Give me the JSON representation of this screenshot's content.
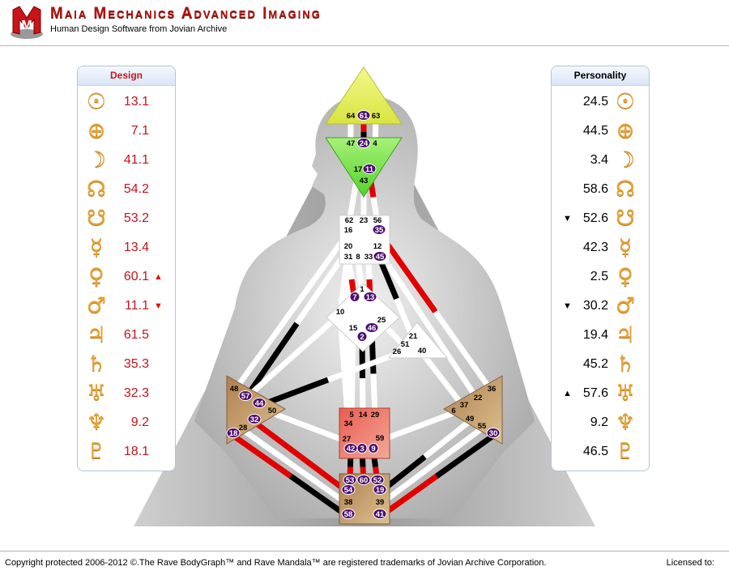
{
  "header": {
    "title": "Maia Mechanics Advanced Imaging",
    "subtitle": "Human Design Software from Jovian Archive",
    "logo_letter": "M"
  },
  "design": {
    "title": "Design",
    "rows": [
      {
        "planet": "sun-icon",
        "glyph": "☉",
        "value": "13.1",
        "arrow": ""
      },
      {
        "planet": "earth-icon",
        "glyph": "⊕",
        "value": "7.1",
        "arrow": ""
      },
      {
        "planet": "moon-icon",
        "glyph": "☽",
        "value": "41.1",
        "arrow": ""
      },
      {
        "planet": "north-node-icon",
        "glyph": "☊",
        "value": "54.2",
        "arrow": ""
      },
      {
        "planet": "south-node-icon",
        "glyph": "☋",
        "value": "53.2",
        "arrow": ""
      },
      {
        "planet": "mercury-icon",
        "glyph": "☿",
        "value": "13.4",
        "arrow": ""
      },
      {
        "planet": "venus-icon",
        "glyph": "♀",
        "value": "60.1",
        "arrow": "▲"
      },
      {
        "planet": "mars-icon",
        "glyph": "♂",
        "value": "11.1",
        "arrow": "▼"
      },
      {
        "planet": "jupiter-icon",
        "glyph": "♃",
        "value": "61.5",
        "arrow": ""
      },
      {
        "planet": "saturn-icon",
        "glyph": "♄",
        "value": "35.3",
        "arrow": ""
      },
      {
        "planet": "uranus-icon",
        "glyph": "♅",
        "value": "32.3",
        "arrow": ""
      },
      {
        "planet": "neptune-icon",
        "glyph": "♆",
        "value": "9.2",
        "arrow": ""
      },
      {
        "planet": "pluto-icon",
        "glyph": "♇",
        "value": "18.1",
        "arrow": ""
      }
    ]
  },
  "personality": {
    "title": "Personality",
    "rows": [
      {
        "planet": "sun-icon",
        "glyph": "☉",
        "value": "24.5",
        "arrow": ""
      },
      {
        "planet": "earth-icon",
        "glyph": "⊕",
        "value": "44.5",
        "arrow": ""
      },
      {
        "planet": "moon-icon",
        "glyph": "☽",
        "value": "3.4",
        "arrow": ""
      },
      {
        "planet": "north-node-icon",
        "glyph": "☊",
        "value": "58.6",
        "arrow": ""
      },
      {
        "planet": "south-node-icon",
        "glyph": "☋",
        "value": "52.6",
        "arrow": "▼"
      },
      {
        "planet": "mercury-icon",
        "glyph": "☿",
        "value": "42.3",
        "arrow": ""
      },
      {
        "planet": "venus-icon",
        "glyph": "♀",
        "value": "2.5",
        "arrow": ""
      },
      {
        "planet": "mars-icon",
        "glyph": "♂",
        "value": "30.2",
        "arrow": "▼"
      },
      {
        "planet": "jupiter-icon",
        "glyph": "♃",
        "value": "19.4",
        "arrow": ""
      },
      {
        "planet": "saturn-icon",
        "glyph": "♄",
        "value": "45.2",
        "arrow": ""
      },
      {
        "planet": "uranus-icon",
        "glyph": "♅",
        "value": "57.6",
        "arrow": "▲"
      },
      {
        "planet": "neptune-icon",
        "glyph": "♆",
        "value": "9.2",
        "arrow": ""
      },
      {
        "planet": "pluto-icon",
        "glyph": "♇",
        "value": "46.5",
        "arrow": ""
      }
    ]
  },
  "colors": {
    "design": "#e00000",
    "personality": "#000000",
    "planet_glyph": "#e6a53a",
    "active_gate": "#4b0f6e",
    "head": "#e8f060",
    "ajna": "#7fe24a",
    "sacral": "#e86a5c",
    "motor_tan": "#c49a62"
  },
  "bodygraph": {
    "gates": {
      "head": [
        [
          "64",
          0
        ],
        [
          "61",
          1
        ],
        [
          "63",
          0
        ]
      ],
      "ajna": [
        [
          "47",
          0
        ],
        [
          "24",
          1
        ],
        [
          "4",
          0
        ],
        [
          "17",
          0
        ],
        [
          "11",
          1
        ],
        [
          "43",
          0
        ]
      ],
      "throat": [
        [
          "62",
          0
        ],
        [
          "23",
          0
        ],
        [
          "56",
          0
        ],
        [
          "16",
          0
        ],
        [
          "35",
          1
        ],
        [
          "20",
          0
        ],
        [
          "12",
          0
        ],
        [
          "31",
          0
        ],
        [
          "8",
          0
        ],
        [
          "33",
          0
        ],
        [
          "45",
          1
        ]
      ],
      "g": [
        [
          "1",
          0
        ],
        [
          "7",
          1
        ],
        [
          "13",
          1
        ],
        [
          "10",
          0
        ],
        [
          "25",
          0
        ],
        [
          "15",
          0
        ],
        [
          "46",
          1
        ],
        [
          "2",
          1
        ]
      ],
      "heart": [
        [
          "21",
          0
        ],
        [
          "51",
          0
        ],
        [
          "26",
          0
        ],
        [
          "40",
          0
        ]
      ],
      "sacral": [
        [
          "5",
          0
        ],
        [
          "14",
          0
        ],
        [
          "29",
          0
        ],
        [
          "34",
          0
        ],
        [
          "27",
          0
        ],
        [
          "59",
          0
        ],
        [
          "42",
          1
        ],
        [
          "3",
          1
        ],
        [
          "9",
          1
        ]
      ],
      "root": [
        [
          "53",
          1
        ],
        [
          "60",
          1
        ],
        [
          "52",
          1
        ],
        [
          "54",
          1
        ],
        [
          "19",
          1
        ],
        [
          "38",
          0
        ],
        [
          "39",
          0
        ],
        [
          "58",
          1
        ],
        [
          "41",
          1
        ]
      ],
      "spleen": [
        [
          "48",
          0
        ],
        [
          "57",
          1
        ],
        [
          "44",
          1
        ],
        [
          "50",
          0
        ],
        [
          "32",
          1
        ],
        [
          "28",
          0
        ],
        [
          "18",
          1
        ]
      ],
      "solar": [
        [
          "36",
          0
        ],
        [
          "22",
          0
        ],
        [
          "37",
          0
        ],
        [
          "6",
          0
        ],
        [
          "49",
          0
        ],
        [
          "55",
          0
        ],
        [
          "30",
          1
        ]
      ]
    },
    "channels": [
      [
        "64",
        "47",
        "w",
        "w"
      ],
      [
        "61",
        "24",
        "r",
        "b"
      ],
      [
        "63",
        "4",
        "w",
        "w"
      ],
      [
        "17",
        "62",
        "w",
        "w"
      ],
      [
        "43",
        "23",
        "w",
        "w"
      ],
      [
        "11",
        "56",
        "r",
        "w"
      ],
      [
        "16",
        "48",
        "w",
        "w"
      ],
      [
        "20",
        "57",
        "w",
        "b"
      ],
      [
        "20",
        "34",
        "w",
        "w"
      ],
      [
        "20",
        "10",
        "w",
        "w"
      ],
      [
        "31",
        "7",
        "w",
        "r"
      ],
      [
        "8",
        "1",
        "w",
        "w"
      ],
      [
        "33",
        "13",
        "w",
        "r"
      ],
      [
        "35",
        "36",
        "r",
        "w"
      ],
      [
        "12",
        "22",
        "w",
        "w"
      ],
      [
        "45",
        "21",
        "b",
        "w"
      ],
      [
        "10",
        "57",
        "w",
        "w"
      ],
      [
        "10",
        "34",
        "w",
        "w"
      ],
      [
        "25",
        "51",
        "w",
        "w"
      ],
      [
        "15",
        "5",
        "w",
        "w"
      ],
      [
        "2",
        "14",
        "b",
        "w"
      ],
      [
        "46",
        "29",
        "b",
        "w"
      ],
      [
        "44",
        "26",
        "b",
        "w"
      ],
      [
        "50",
        "27",
        "w",
        "w"
      ],
      [
        "26",
        "40",
        "w",
        "w"
      ],
      [
        "40",
        "37",
        "w",
        "w"
      ],
      [
        "59",
        "6",
        "w",
        "w"
      ],
      [
        "32",
        "54",
        "r",
        "r"
      ],
      [
        "28",
        "38",
        "w",
        "w"
      ],
      [
        "18",
        "58",
        "r",
        "b"
      ],
      [
        "42",
        "53",
        "b",
        "r"
      ],
      [
        "3",
        "60",
        "b",
        "r"
      ],
      [
        "9",
        "52",
        "b",
        "r"
      ],
      [
        "19",
        "49",
        "b",
        "w"
      ],
      [
        "39",
        "55",
        "w",
        "w"
      ],
      [
        "41",
        "30",
        "r",
        "b"
      ]
    ]
  },
  "footer": {
    "copyright": "Copyright protected 2006-2012 ©.The Rave BodyGraph™ and Rave Mandala™ are registered trademarks of Jovian Archive Corporation.",
    "licensed": "Licensed to:"
  }
}
